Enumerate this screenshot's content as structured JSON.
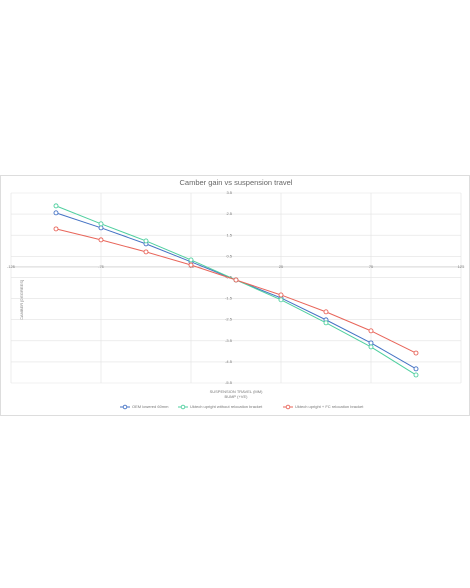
{
  "chart_data": {
    "type": "line",
    "title": "Camber gain vs suspension travel",
    "x_label": "SUSPENSION TRAVEL (MM)",
    "x_sublabel": "BUMP (+VE)",
    "y_label": "CAMBER [DEGREES]",
    "x": [
      -100,
      -75,
      -50,
      -25,
      0,
      25,
      50,
      75,
      100
    ],
    "series": [
      {
        "name": "OEM lowered 60mm",
        "color": "#4472c4",
        "values": [
          2.56,
          1.85,
          1.09,
          0.24,
          -0.62,
          -1.47,
          -2.51,
          -3.6,
          -4.83
        ]
      },
      {
        "name": "Uktech upright without relocation bracket",
        "color": "#4fcf9f",
        "values": [
          2.89,
          2.04,
          1.23,
          0.33,
          -0.62,
          -1.56,
          -2.65,
          -3.79,
          -5.12
        ]
      },
      {
        "name": "Uktech upright + FC relocation bracket",
        "color": "#e8655a",
        "values": [
          1.8,
          1.28,
          0.71,
          0.09,
          -0.62,
          -1.33,
          -2.13,
          -3.03,
          -4.08
        ]
      }
    ],
    "xlim": [
      -125,
      125
    ],
    "xticks": [
      -125,
      -75,
      -25,
      25,
      75,
      125
    ],
    "ylim": [
      -5.5,
      3.5
    ],
    "yticks": [
      3.5,
      2.5,
      1.5,
      0.5,
      -0.5,
      -1.5,
      -2.5,
      -3.5,
      -4.5,
      -5.5
    ],
    "grid": true,
    "legend": "bottom"
  }
}
